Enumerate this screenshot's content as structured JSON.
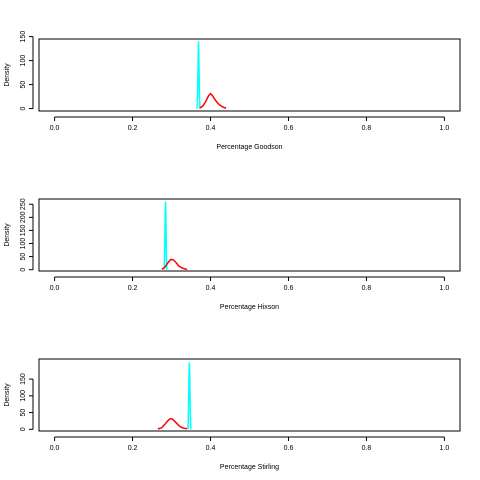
{
  "chart_data": [
    {
      "type": "line",
      "xlabel": "Percentage Goodson",
      "ylabel": "Density",
      "xlim": [
        -0.04,
        1.04
      ],
      "ylim": [
        -5,
        145
      ],
      "x_ticks": [
        "0.0",
        "0.2",
        "0.4",
        "0.6",
        "0.8",
        "1.0"
      ],
      "y_ticks": [
        "0",
        "50",
        "100",
        "150"
      ],
      "grid": false,
      "legend": "none",
      "series": [
        {
          "color": "#00FFFF",
          "x": [
            0.3655,
            0.3665,
            0.3675,
            0.3685,
            0.3692,
            0.37,
            0.371,
            0.372,
            0.373
          ],
          "y": [
            0,
            20,
            60,
            110,
            140,
            110,
            60,
            20,
            0
          ]
        },
        {
          "color": "#FF0000",
          "x": [
            0.372,
            0.38,
            0.388,
            0.395,
            0.4,
            0.405,
            0.412,
            0.42,
            0.428,
            0.436,
            0.44
          ],
          "y": [
            1,
            5,
            15,
            27,
            31,
            27,
            18,
            10,
            5,
            2,
            1
          ]
        }
      ]
    },
    {
      "type": "line",
      "xlabel": "Percentage Hixson",
      "ylabel": "Density",
      "xlim": [
        -0.04,
        1.04
      ],
      "ylim": [
        -5,
        270
      ],
      "x_ticks": [
        "0.0",
        "0.2",
        "0.4",
        "0.6",
        "0.8",
        "1.0"
      ],
      "y_ticks": [
        "0",
        "50",
        "100",
        "150",
        "200",
        "250"
      ],
      "grid": false,
      "legend": "none",
      "series": [
        {
          "color": "#00FFFF",
          "x": [
            0.281,
            0.282,
            0.283,
            0.2838,
            0.2845,
            0.2852,
            0.286,
            0.287,
            0.288
          ],
          "y": [
            0,
            40,
            140,
            220,
            260,
            220,
            140,
            40,
            0
          ]
        },
        {
          "color": "#FF0000",
          "x": [
            0.275,
            0.282,
            0.29,
            0.297,
            0.303,
            0.31,
            0.318,
            0.326,
            0.334,
            0.34
          ],
          "y": [
            2,
            8,
            25,
            38,
            39,
            30,
            15,
            7,
            3,
            1
          ]
        }
      ]
    },
    {
      "type": "line",
      "xlabel": "Percentage Stirling",
      "ylabel": "Density",
      "xlim": [
        -0.04,
        1.04
      ],
      "ylim": [
        -5,
        210
      ],
      "x_ticks": [
        "0.0",
        "0.2",
        "0.4",
        "0.6",
        "0.8",
        "1.0"
      ],
      "y_ticks": [
        "0",
        "50",
        "100",
        "150"
      ],
      "grid": false,
      "legend": "none",
      "series": [
        {
          "color": "#00FFFF",
          "x": [
            0.342,
            0.343,
            0.344,
            0.345,
            0.3458,
            0.3465,
            0.3475,
            0.3485,
            0.3495
          ],
          "y": [
            0,
            30,
            100,
            170,
            200,
            170,
            100,
            30,
            0
          ]
        },
        {
          "color": "#FF0000",
          "x": [
            0.265,
            0.275,
            0.283,
            0.29,
            0.297,
            0.303,
            0.31,
            0.318,
            0.325,
            0.333,
            0.34
          ],
          "y": [
            1,
            5,
            15,
            25,
            32,
            30,
            22,
            12,
            6,
            3,
            2
          ]
        }
      ]
    }
  ]
}
